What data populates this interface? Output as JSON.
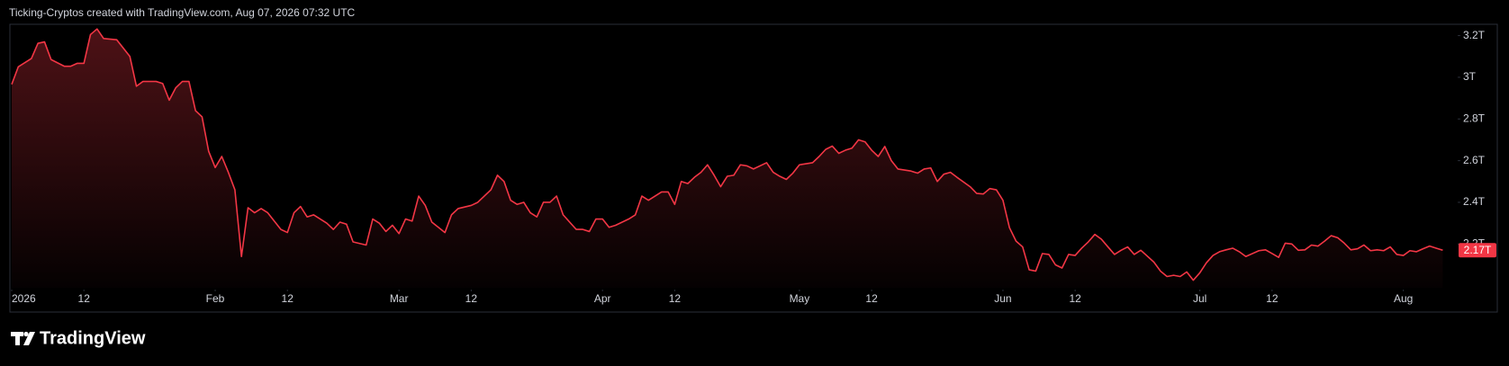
{
  "header": "Ticking-Cryptos created with TradingView.com, Aug 07, 2026 07:32 UTC",
  "brand": "TradingView",
  "chart_data": {
    "type": "area",
    "color": "#f23645",
    "grid": false,
    "xlim": [
      "2026-01-01",
      "2026-08-09"
    ],
    "ylim": [
      1.99,
      3.25
    ],
    "yticks": [
      {
        "value": 3.2,
        "label": "3.2T"
      },
      {
        "value": 3,
        "label": "3T"
      },
      {
        "value": 2.8,
        "label": "2.8T"
      },
      {
        "value": 2.6,
        "label": "2.6T"
      },
      {
        "value": 2.4,
        "label": "2.4T"
      },
      {
        "value": 2.2,
        "label": "2.2T"
      }
    ],
    "xticks": [
      {
        "value": "2026-01-01",
        "label": "2026"
      },
      {
        "value": "2026-01-12",
        "label": "12"
      },
      {
        "value": "2026-02-01",
        "label": "Feb"
      },
      {
        "value": "2026-02-12",
        "label": "12"
      },
      {
        "value": "2026-03-01",
        "label": "Mar"
      },
      {
        "value": "2026-03-12",
        "label": "12"
      },
      {
        "value": "2026-04-01",
        "label": "Apr"
      },
      {
        "value": "2026-04-12",
        "label": "12"
      },
      {
        "value": "2026-05-01",
        "label": "May"
      },
      {
        "value": "2026-05-12",
        "label": "12"
      },
      {
        "value": "2026-06-01",
        "label": "Jun"
      },
      {
        "value": "2026-06-12",
        "label": "12"
      },
      {
        "value": "2026-07-01",
        "label": "Jul"
      },
      {
        "value": "2026-07-12",
        "label": "12"
      },
      {
        "value": "2026-08-01",
        "label": "Aug"
      }
    ],
    "last_price": {
      "value": 2.17,
      "label": "2.17T"
    },
    "x": [
      "2026-01-01",
      "2026-01-02",
      "2026-01-04",
      "2026-01-05",
      "2026-01-06",
      "2026-01-07",
      "2026-01-09",
      "2026-01-10",
      "2026-01-11",
      "2026-01-12",
      "2026-01-13",
      "2026-01-14",
      "2026-01-15",
      "2026-01-17",
      "2026-01-19",
      "2026-01-20",
      "2026-01-21",
      "2026-01-23",
      "2026-01-24",
      "2026-01-25",
      "2026-01-26",
      "2026-01-27",
      "2026-01-28",
      "2026-01-29",
      "2026-01-30",
      "2026-01-31",
      "2026-02-01",
      "2026-02-02",
      "2026-02-03",
      "2026-02-04",
      "2026-02-05",
      "2026-02-06",
      "2026-02-07",
      "2026-02-08",
      "2026-02-09",
      "2026-02-11",
      "2026-02-12",
      "2026-02-13",
      "2026-02-14",
      "2026-02-15",
      "2026-02-16",
      "2026-02-18",
      "2026-02-19",
      "2026-02-20",
      "2026-02-21",
      "2026-02-22",
      "2026-02-24",
      "2026-02-25",
      "2026-02-26",
      "2026-02-27",
      "2026-02-28",
      "2026-03-01",
      "2026-03-02",
      "2026-03-03",
      "2026-03-04",
      "2026-03-05",
      "2026-03-06",
      "2026-03-08",
      "2026-03-09",
      "2026-03-10",
      "2026-03-12",
      "2026-03-13",
      "2026-03-15",
      "2026-03-16",
      "2026-03-17",
      "2026-03-18",
      "2026-03-19",
      "2026-03-20",
      "2026-03-21",
      "2026-03-22",
      "2026-03-23",
      "2026-03-24",
      "2026-03-25",
      "2026-03-26",
      "2026-03-28",
      "2026-03-29",
      "2026-03-30",
      "2026-03-31",
      "2026-04-01",
      "2026-04-02",
      "2026-04-03",
      "2026-04-05",
      "2026-04-06",
      "2026-04-07",
      "2026-04-08",
      "2026-04-09",
      "2026-04-10",
      "2026-04-11",
      "2026-04-12",
      "2026-04-13",
      "2026-04-14",
      "2026-04-15",
      "2026-04-16",
      "2026-04-17",
      "2026-04-18",
      "2026-04-19",
      "2026-04-20",
      "2026-04-21",
      "2026-04-22",
      "2026-04-23",
      "2026-04-24",
      "2026-04-26",
      "2026-04-27",
      "2026-04-28",
      "2026-04-29",
      "2026-04-30",
      "2026-05-01",
      "2026-05-03",
      "2026-05-04",
      "2026-05-05",
      "2026-05-06",
      "2026-05-07",
      "2026-05-08",
      "2026-05-09",
      "2026-05-10",
      "2026-05-11",
      "2026-05-12",
      "2026-05-13",
      "2026-05-14",
      "2026-05-15",
      "2026-05-16",
      "2026-05-18",
      "2026-05-19",
      "2026-05-20",
      "2026-05-21",
      "2026-05-22",
      "2026-05-23",
      "2026-05-24",
      "2026-05-25",
      "2026-05-27",
      "2026-05-28",
      "2026-05-29",
      "2026-05-30",
      "2026-05-31",
      "2026-06-01",
      "2026-06-02",
      "2026-06-03",
      "2026-06-04",
      "2026-06-05",
      "2026-06-06",
      "2026-06-07",
      "2026-06-08",
      "2026-06-09",
      "2026-06-10",
      "2026-06-11",
      "2026-06-12",
      "2026-06-13",
      "2026-06-14",
      "2026-06-15",
      "2026-06-16",
      "2026-06-17",
      "2026-06-18",
      "2026-06-19",
      "2026-06-20",
      "2026-06-21",
      "2026-06-22",
      "2026-06-24",
      "2026-06-25",
      "2026-06-26",
      "2026-06-27",
      "2026-06-28",
      "2026-06-29",
      "2026-06-30",
      "2026-07-01",
      "2026-07-02",
      "2026-07-03",
      "2026-07-04",
      "2026-07-05",
      "2026-07-06",
      "2026-07-07",
      "2026-07-08",
      "2026-07-10",
      "2026-07-11",
      "2026-07-12",
      "2026-07-13",
      "2026-07-14",
      "2026-07-15",
      "2026-07-16",
      "2026-07-17",
      "2026-07-18",
      "2026-07-19",
      "2026-07-20",
      "2026-07-21",
      "2026-07-22",
      "2026-07-23",
      "2026-07-24",
      "2026-07-25",
      "2026-07-26",
      "2026-07-27",
      "2026-07-28",
      "2026-07-29",
      "2026-07-30",
      "2026-07-31",
      "2026-08-01",
      "2026-08-02",
      "2026-08-03",
      "2026-08-04",
      "2026-08-05",
      "2026-08-06",
      "2026-08-07"
    ],
    "values": [
      2.966,
      3.05,
      3.09,
      3.163,
      3.17,
      3.085,
      3.053,
      3.053,
      3.067,
      3.067,
      3.205,
      3.232,
      3.186,
      3.18,
      3.1,
      2.957,
      2.98,
      2.98,
      2.97,
      2.89,
      2.95,
      2.98,
      2.98,
      2.84,
      2.81,
      2.645,
      2.567,
      2.62,
      2.544,
      2.46,
      2.14,
      2.374,
      2.35,
      2.37,
      2.35,
      2.27,
      2.255,
      2.35,
      2.38,
      2.33,
      2.34,
      2.3,
      2.27,
      2.305,
      2.295,
      2.21,
      2.195,
      2.32,
      2.3,
      2.26,
      2.29,
      2.25,
      2.32,
      2.31,
      2.43,
      2.385,
      2.305,
      2.255,
      2.34,
      2.37,
      2.385,
      2.4,
      2.46,
      2.53,
      2.5,
      2.41,
      2.39,
      2.4,
      2.35,
      2.33,
      2.4,
      2.4,
      2.43,
      2.34,
      2.27,
      2.27,
      2.26,
      2.32,
      2.32,
      2.28,
      2.29,
      2.32,
      2.34,
      2.43,
      2.41,
      2.43,
      2.45,
      2.45,
      2.39,
      2.5,
      2.49,
      2.52,
      2.544,
      2.58,
      2.53,
      2.475,
      2.525,
      2.53,
      2.58,
      2.575,
      2.56,
      2.59,
      2.544,
      2.525,
      2.51,
      2.54,
      2.58,
      2.59,
      2.62,
      2.654,
      2.67,
      2.635,
      2.65,
      2.66,
      2.7,
      2.69,
      2.65,
      2.62,
      2.668,
      2.6,
      2.56,
      2.55,
      2.54,
      2.56,
      2.565,
      2.5,
      2.535,
      2.544,
      2.52,
      2.475,
      2.443,
      2.44,
      2.466,
      2.46,
      2.41,
      2.278,
      2.214,
      2.186,
      2.076,
      2.07,
      2.154,
      2.15,
      2.1,
      2.085,
      2.15,
      2.145,
      2.18,
      2.21,
      2.246,
      2.223,
      2.186,
      2.15,
      2.17,
      2.186,
      2.15,
      2.17,
      2.113,
      2.07,
      2.044,
      2.05,
      2.044,
      2.066,
      2.026,
      2.062,
      2.11,
      2.145,
      2.163,
      2.172,
      2.18,
      2.163,
      2.14,
      2.168,
      2.172,
      2.154,
      2.136,
      2.204,
      2.2,
      2.17,
      2.172,
      2.195,
      2.19,
      2.214,
      2.24,
      2.23,
      2.204,
      2.172,
      2.177,
      2.195,
      2.168,
      2.172,
      2.168,
      2.186,
      2.15,
      2.145,
      2.168,
      2.163,
      2.177,
      2.19,
      2.18,
      2.17
    ]
  }
}
